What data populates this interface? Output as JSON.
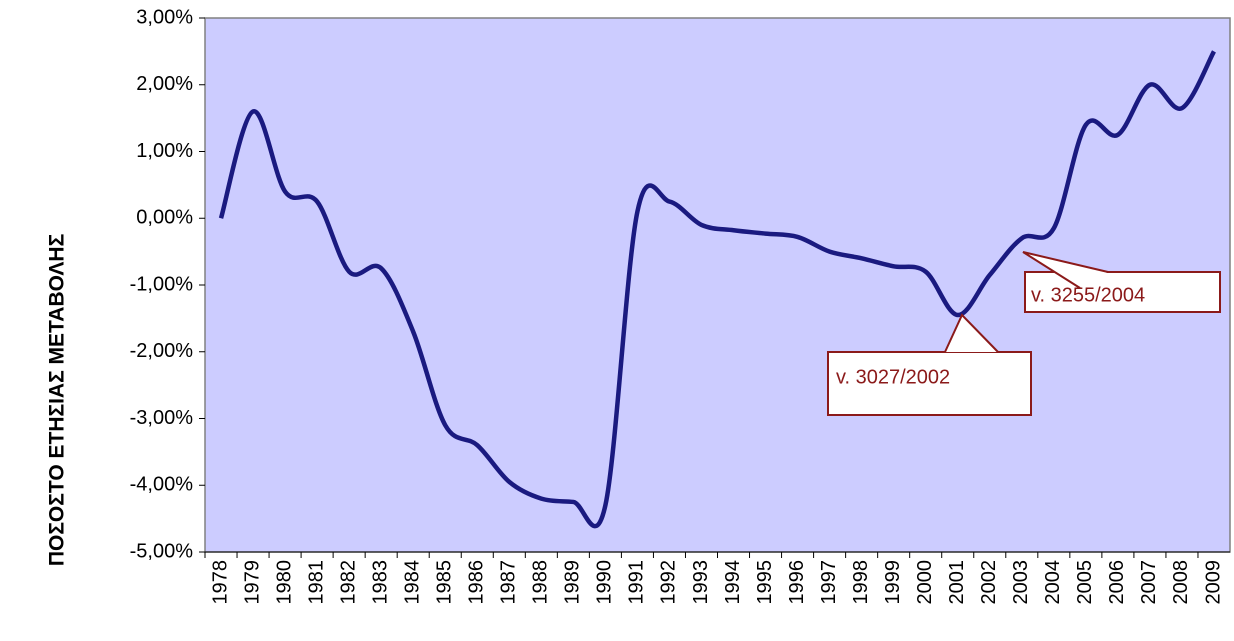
{
  "chart_data": {
    "type": "line",
    "y_label": "ΠΟΣΟΣΤΟ ΕΤΗΣΙΑΣ ΜΕΤΑΒΟΛΗΣ",
    "categories": [
      "1978",
      "1979",
      "1980",
      "1981",
      "1982",
      "1983",
      "1984",
      "1985",
      "1986",
      "1987",
      "1988",
      "1989",
      "1990",
      "1991",
      "1992",
      "1993",
      "1994",
      "1995",
      "1996",
      "1997",
      "1998",
      "1999",
      "2000",
      "2001",
      "2002",
      "2003",
      "2004",
      "2005",
      "2006",
      "2007",
      "2008",
      "2009"
    ],
    "series": [
      {
        "color": "#1a1a80",
        "values": [
          0.0,
          1.6,
          0.4,
          0.25,
          -0.8,
          -0.75,
          -1.7,
          -3.1,
          -3.4,
          -3.95,
          -4.2,
          -4.25,
          -4.3,
          0.1,
          0.25,
          -0.1,
          -0.18,
          -0.23,
          -0.28,
          -0.5,
          -0.6,
          -0.72,
          -0.8,
          -1.45,
          -0.85,
          -0.3,
          -0.15,
          1.4,
          1.25,
          2.0,
          1.65,
          2.5
        ]
      }
    ],
    "ylim": [
      -5,
      3
    ],
    "yticks": [
      {
        "value": -5,
        "label": "-5,00%"
      },
      {
        "value": -4,
        "label": "-4,00%"
      },
      {
        "value": -3,
        "label": "-3,00%"
      },
      {
        "value": -2,
        "label": "-2,00%"
      },
      {
        "value": -1,
        "label": "-1,00%"
      },
      {
        "value": 0,
        "label": "0,00%"
      },
      {
        "value": 1,
        "label": "1,00%"
      },
      {
        "value": 2,
        "label": "2,00%"
      },
      {
        "value": 3,
        "label": "3,00%"
      }
    ],
    "annotations": [
      {
        "text": "v. 3027/2002"
      },
      {
        "text": "v. 3255/2004"
      }
    ],
    "annotation_color": "#8b1a1a",
    "plot_background": "#ccccff"
  }
}
